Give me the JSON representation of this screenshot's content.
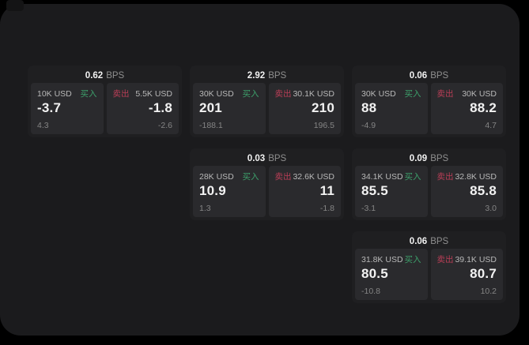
{
  "labels": {
    "bps_suffix": "BPS",
    "buy": "买入",
    "sell": "卖出"
  },
  "colors": {
    "page_bg": "#000000",
    "panel_bg": "#1b1b1d",
    "card_bg": "#1f1f21",
    "tile_bg": "#2a2a2d",
    "buy_green": "#3da06b",
    "sell_red": "#b93e56",
    "text_primary": "#f2f2f2",
    "text_secondary": "#b8b8b8",
    "text_muted": "#858585"
  },
  "cards": [
    {
      "bps": "0.62",
      "buy": {
        "notional": "10K USD",
        "price": "-3.7",
        "delta": "4.3"
      },
      "sell": {
        "notional": "5.5K USD",
        "price": "-1.8",
        "delta": "-2.6"
      }
    },
    {
      "bps": "2.92",
      "buy": {
        "notional": "30K USD",
        "price": "201",
        "delta": "-188.1"
      },
      "sell": {
        "notional": "30.1K USD",
        "price": "210",
        "delta": "196.5"
      }
    },
    {
      "bps": "0.06",
      "buy": {
        "notional": "30K USD",
        "price": "88",
        "delta": "-4.9"
      },
      "sell": {
        "notional": "30K USD",
        "price": "88.2",
        "delta": "4.7"
      }
    },
    {
      "bps": "0.03",
      "buy": {
        "notional": "28K USD",
        "price": "10.9",
        "delta": "1.3"
      },
      "sell": {
        "notional": "32.6K USD",
        "price": "11",
        "delta": "-1.8"
      }
    },
    {
      "bps": "0.09",
      "buy": {
        "notional": "34.1K USD",
        "price": "85.5",
        "delta": "-3.1"
      },
      "sell": {
        "notional": "32.8K USD",
        "price": "85.8",
        "delta": "3.0"
      }
    },
    {
      "bps": "0.06",
      "buy": {
        "notional": "31.8K USD",
        "price": "80.5",
        "delta": "-10.8"
      },
      "sell": {
        "notional": "39.1K USD",
        "price": "80.7",
        "delta": "10.2"
      }
    }
  ]
}
